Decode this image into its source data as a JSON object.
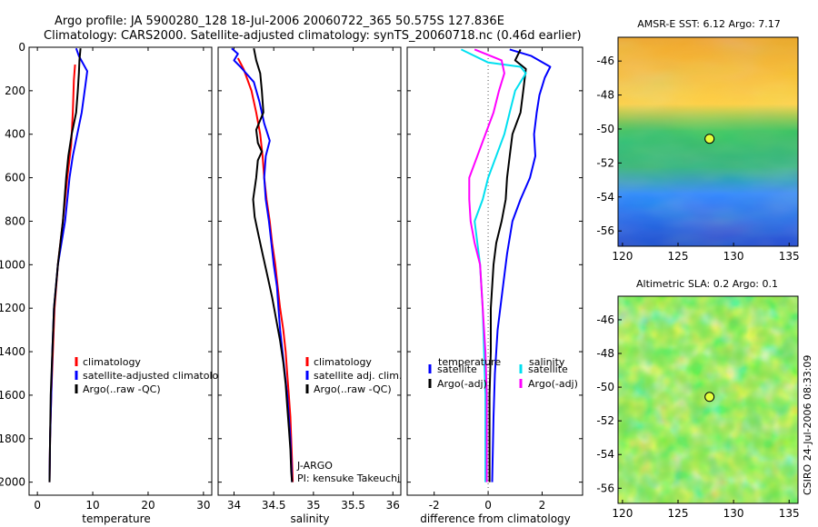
{
  "title": {
    "line1": "Argo profile: JA 5900280_128 18-Jul-2006 20060722_365 50.575S 127.836E",
    "line2": "Climatology: CARS2000. Satellite-adjusted climatology: synTS_20060718.nc (0.46d earlier)"
  },
  "footer_text": "CSIRO 24-Jul-2006 08:33:09",
  "colors": {
    "red": "#ff0000",
    "blue": "#0000ff",
    "black": "#000000",
    "cyan": "#00e0f0",
    "magenta": "#ff00ff",
    "zero_line": "#555555",
    "marker": "#e6ff3c"
  },
  "chart_data": [
    {
      "id": "temperature",
      "type": "line",
      "xlabel": "temperature",
      "ylabel": "",
      "xlim": [
        -1.5,
        31.5
      ],
      "ylim": [
        2060,
        0
      ],
      "xticks": [
        0,
        10,
        20,
        30
      ],
      "yticks": [
        0,
        200,
        400,
        600,
        800,
        1000,
        1200,
        1400,
        1600,
        1800,
        2000
      ],
      "legend": {
        "placement": "lower-middle",
        "entries": [
          {
            "label": "climatology",
            "color": "red"
          },
          {
            "label": "satellite-adjusted climatology",
            "color": "blue"
          },
          {
            "label": "Argo(..raw -QC)",
            "color": "black"
          }
        ]
      },
      "series": [
        {
          "name": "climatology",
          "color": "red",
          "points": [
            [
              6.8,
              80
            ],
            [
              6.6,
              150
            ],
            [
              6.4,
              300
            ],
            [
              6.1,
              450
            ],
            [
              5.4,
              600
            ],
            [
              4.6,
              800
            ],
            [
              3.7,
              1000
            ],
            [
              3.1,
              1200
            ],
            [
              2.8,
              1400
            ],
            [
              2.5,
              1600
            ],
            [
              2.3,
              1800
            ],
            [
              2.2,
              2000
            ]
          ]
        },
        {
          "name": "satellite-adjusted climatology",
          "color": "blue",
          "points": [
            [
              7.0,
              5
            ],
            [
              7.5,
              40
            ],
            [
              9.0,
              110
            ],
            [
              8.7,
              170
            ],
            [
              8.0,
              300
            ],
            [
              7.2,
              400
            ],
            [
              6.4,
              500
            ],
            [
              5.8,
              600
            ],
            [
              5.0,
              800
            ],
            [
              3.7,
              1000
            ],
            [
              3.0,
              1200
            ],
            [
              2.7,
              1400
            ],
            [
              2.5,
              1600
            ],
            [
              2.3,
              1800
            ],
            [
              2.2,
              2000
            ]
          ]
        },
        {
          "name": "Argo(..raw -QC)",
          "color": "black",
          "points": [
            [
              7.8,
              5
            ],
            [
              7.6,
              60
            ],
            [
              7.5,
              120
            ],
            [
              7.3,
              200
            ],
            [
              7.0,
              300
            ],
            [
              6.2,
              400
            ],
            [
              5.6,
              500
            ],
            [
              5.2,
              600
            ],
            [
              4.6,
              800
            ],
            [
              3.7,
              1000
            ],
            [
              3.0,
              1200
            ],
            [
              2.7,
              1400
            ],
            [
              2.4,
              1600
            ],
            [
              2.3,
              1800
            ],
            [
              2.2,
              2000
            ]
          ]
        }
      ]
    },
    {
      "id": "salinity",
      "type": "line",
      "xlabel": "salinity",
      "ylabel": "",
      "xlim": [
        33.8,
        36.1
      ],
      "ylim": [
        2060,
        0
      ],
      "xticks": [
        34,
        34.5,
        35,
        35.5,
        36
      ],
      "yticks": [
        0,
        200,
        400,
        600,
        800,
        1000,
        1200,
        1400,
        1600,
        1800,
        2000
      ],
      "legend": {
        "placement": "lower-right",
        "entries": [
          {
            "label": "climatology",
            "color": "red"
          },
          {
            "label": "satellite adj. clim.",
            "color": "blue"
          },
          {
            "label": "Argo(..raw -QC)",
            "color": "black"
          }
        ]
      },
      "annotations": [
        "J-ARGO",
        "PI: kensuke Takeuchi"
      ],
      "series": [
        {
          "name": "climatology",
          "color": "red",
          "points": [
            [
              34.05,
              50
            ],
            [
              34.12,
              100
            ],
            [
              34.22,
              200
            ],
            [
              34.28,
              300
            ],
            [
              34.33,
              400
            ],
            [
              34.36,
              500
            ],
            [
              34.38,
              600
            ],
            [
              34.41,
              700
            ],
            [
              34.45,
              800
            ],
            [
              34.48,
              900
            ],
            [
              34.52,
              1000
            ],
            [
              34.55,
              1100
            ],
            [
              34.58,
              1200
            ],
            [
              34.62,
              1300
            ],
            [
              34.65,
              1400
            ],
            [
              34.67,
              1500
            ],
            [
              34.69,
              1600
            ],
            [
              34.71,
              1700
            ],
            [
              34.72,
              1800
            ],
            [
              34.73,
              1900
            ],
            [
              34.74,
              2000
            ]
          ]
        },
        {
          "name": "satellite adj. clim.",
          "color": "blue",
          "points": [
            [
              33.97,
              5
            ],
            [
              34.05,
              30
            ],
            [
              34.0,
              60
            ],
            [
              34.08,
              90
            ],
            [
              34.25,
              160
            ],
            [
              34.32,
              250
            ],
            [
              34.38,
              350
            ],
            [
              34.45,
              430
            ],
            [
              34.4,
              500
            ],
            [
              34.38,
              600
            ],
            [
              34.4,
              700
            ],
            [
              34.44,
              800
            ],
            [
              34.47,
              900
            ],
            [
              34.5,
              1000
            ],
            [
              34.54,
              1100
            ],
            [
              34.56,
              1200
            ],
            [
              34.58,
              1300
            ],
            [
              34.61,
              1400
            ],
            [
              34.64,
              1500
            ],
            [
              34.67,
              1600
            ],
            [
              34.69,
              1700
            ],
            [
              34.71,
              1800
            ],
            [
              34.72,
              1900
            ],
            [
              34.73,
              2000
            ]
          ]
        },
        {
          "name": "Argo(..raw -QC)",
          "color": "black",
          "points": [
            [
              34.25,
              5
            ],
            [
              34.28,
              60
            ],
            [
              34.33,
              120
            ],
            [
              34.35,
              200
            ],
            [
              34.37,
              300
            ],
            [
              34.28,
              380
            ],
            [
              34.3,
              440
            ],
            [
              34.35,
              480
            ],
            [
              34.3,
              520
            ],
            [
              34.28,
              600
            ],
            [
              34.24,
              700
            ],
            [
              34.26,
              780
            ],
            [
              34.3,
              850
            ],
            [
              34.36,
              950
            ],
            [
              34.42,
              1050
            ],
            [
              34.48,
              1150
            ],
            [
              34.53,
              1250
            ],
            [
              34.58,
              1350
            ],
            [
              34.62,
              1450
            ],
            [
              34.65,
              1550
            ],
            [
              34.67,
              1650
            ],
            [
              34.69,
              1750
            ],
            [
              34.71,
              1850
            ],
            [
              34.72,
              1950
            ],
            [
              34.73,
              2000
            ]
          ]
        }
      ]
    },
    {
      "id": "difference",
      "type": "line",
      "xlabel": "difference from climatology",
      "ylabel": "",
      "xlim": [
        -3.0,
        3.5
      ],
      "ylim": [
        2060,
        0
      ],
      "xticks": [
        -2,
        0,
        2
      ],
      "yticks": [
        0,
        200,
        400,
        600,
        800,
        1000,
        1200,
        1400,
        1600,
        1800,
        2000
      ],
      "zero_line": true,
      "legend": {
        "placement": "lower-middle",
        "headers": [
          "temperature",
          "salinity"
        ],
        "entries": [
          {
            "label": "satellite",
            "color": "blue"
          },
          {
            "label": "Argo(-adj)",
            "color": "black"
          },
          {
            "label": "satellite",
            "color": "cyan"
          },
          {
            "label": "Argo(-adj)",
            "color": "magenta"
          }
        ]
      },
      "series": [
        {
          "name": "temperature satellite",
          "color": "blue",
          "points": [
            [
              0.8,
              10
            ],
            [
              1.6,
              40
            ],
            [
              2.3,
              90
            ],
            [
              2.1,
              140
            ],
            [
              1.9,
              220
            ],
            [
              1.8,
              300
            ],
            [
              1.7,
              400
            ],
            [
              1.75,
              500
            ],
            [
              1.55,
              600
            ],
            [
              1.2,
              700
            ],
            [
              0.9,
              800
            ],
            [
              0.7,
              950
            ],
            [
              0.55,
              1100
            ],
            [
              0.35,
              1300
            ],
            [
              0.25,
              1500
            ],
            [
              0.2,
              1700
            ],
            [
              0.15,
              2000
            ]
          ]
        },
        {
          "name": "temperature Argo(-adj)",
          "color": "black",
          "points": [
            [
              1.2,
              10
            ],
            [
              1.0,
              60
            ],
            [
              1.4,
              100
            ],
            [
              1.3,
              200
            ],
            [
              1.2,
              300
            ],
            [
              0.9,
              400
            ],
            [
              0.8,
              500
            ],
            [
              0.7,
              600
            ],
            [
              0.65,
              700
            ],
            [
              0.5,
              800
            ],
            [
              0.3,
              900
            ],
            [
              0.2,
              1000
            ],
            [
              0.1,
              1200
            ],
            [
              0.1,
              1400
            ],
            [
              0.05,
              1600
            ],
            [
              0.05,
              2000
            ]
          ]
        },
        {
          "name": "salinity satellite",
          "color": "cyan",
          "points": [
            [
              -1.0,
              10
            ],
            [
              0.0,
              70
            ],
            [
              1.2,
              90
            ],
            [
              1.4,
              120
            ],
            [
              1.0,
              200
            ],
            [
              0.8,
              300
            ],
            [
              0.6,
              400
            ],
            [
              0.3,
              500
            ],
            [
              0.0,
              600
            ],
            [
              -0.2,
              700
            ],
            [
              -0.5,
              800
            ],
            [
              -0.4,
              900
            ],
            [
              -0.3,
              1000
            ],
            [
              -0.2,
              1200
            ],
            [
              -0.15,
              1400
            ],
            [
              -0.1,
              1600
            ],
            [
              -0.1,
              2000
            ]
          ]
        },
        {
          "name": "salinity Argo(-adj)",
          "color": "magenta",
          "points": [
            [
              -0.5,
              10
            ],
            [
              0.5,
              60
            ],
            [
              0.6,
              120
            ],
            [
              0.4,
              200
            ],
            [
              0.2,
              300
            ],
            [
              -0.1,
              400
            ],
            [
              -0.4,
              500
            ],
            [
              -0.7,
              600
            ],
            [
              -0.7,
              700
            ],
            [
              -0.65,
              800
            ],
            [
              -0.5,
              900
            ],
            [
              -0.3,
              1000
            ],
            [
              -0.2,
              1200
            ],
            [
              -0.1,
              1400
            ],
            [
              -0.05,
              1600
            ],
            [
              -0.05,
              2000
            ]
          ]
        }
      ]
    },
    {
      "id": "amsre_sst_map",
      "type": "heatmap",
      "title": "AMSR-E SST: 6.12 Argo: 7.17",
      "xlim": [
        119.6,
        135.8
      ],
      "ylim": [
        -56.9,
        -44.6
      ],
      "xticks": [
        120,
        125,
        130,
        135
      ],
      "yticks": [
        -46,
        -48,
        -50,
        -52,
        -54,
        -56
      ],
      "argo_position": {
        "lon": 127.836,
        "lat": -50.575
      }
    },
    {
      "id": "altimetric_sla_map",
      "type": "heatmap",
      "title": "Altimetric SLA: 0.2 Argo: 0.1",
      "xlim": [
        119.6,
        135.8
      ],
      "ylim": [
        -56.9,
        -44.6
      ],
      "xticks": [
        120,
        125,
        130,
        135
      ],
      "yticks": [
        -46,
        -48,
        -50,
        -52,
        -54,
        -56
      ],
      "argo_position": {
        "lon": 127.836,
        "lat": -50.575
      }
    }
  ]
}
